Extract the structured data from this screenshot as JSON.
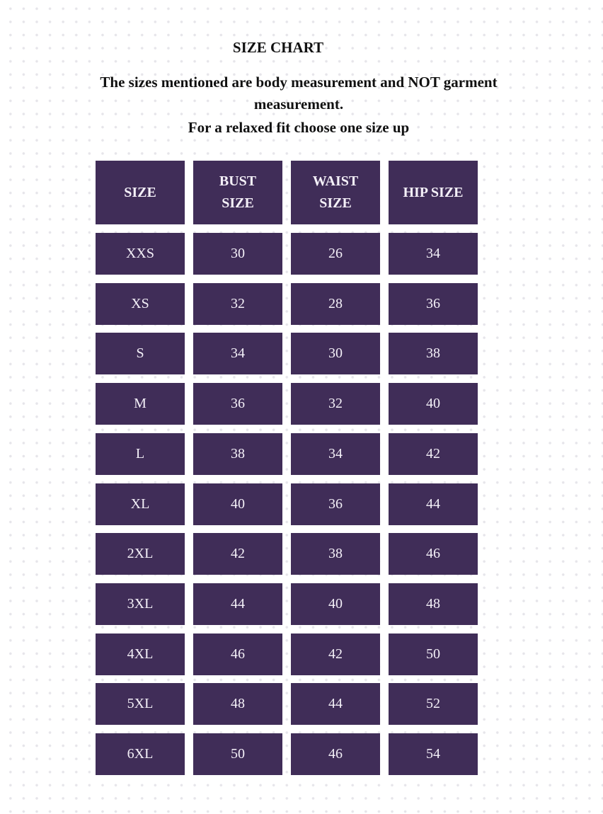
{
  "title": "SIZE CHART",
  "note": "The sizes mentioned are body measurement and NOT garment measurement.",
  "note2": "For a relaxed fit choose one size up",
  "colors": {
    "cell": "#402d58",
    "text_on_cell": "#f4f0f8"
  },
  "table": {
    "headers": [
      "SIZE",
      "BUST SIZE",
      "WAIST SIZE",
      "HIP SIZE"
    ],
    "rows": [
      [
        "XXS",
        "30",
        "26",
        "34"
      ],
      [
        "XS",
        "32",
        "28",
        "36"
      ],
      [
        "S",
        "34",
        "30",
        "38"
      ],
      [
        "M",
        "36",
        "32",
        "40"
      ],
      [
        "L",
        "38",
        "34",
        "42"
      ],
      [
        "XL",
        "40",
        "36",
        "44"
      ],
      [
        "2XL",
        "42",
        "38",
        "46"
      ],
      [
        "3XL",
        "44",
        "40",
        "48"
      ],
      [
        "4XL",
        "46",
        "42",
        "50"
      ],
      [
        "5XL",
        "48",
        "44",
        "52"
      ],
      [
        "6XL",
        "50",
        "46",
        "54"
      ]
    ]
  }
}
